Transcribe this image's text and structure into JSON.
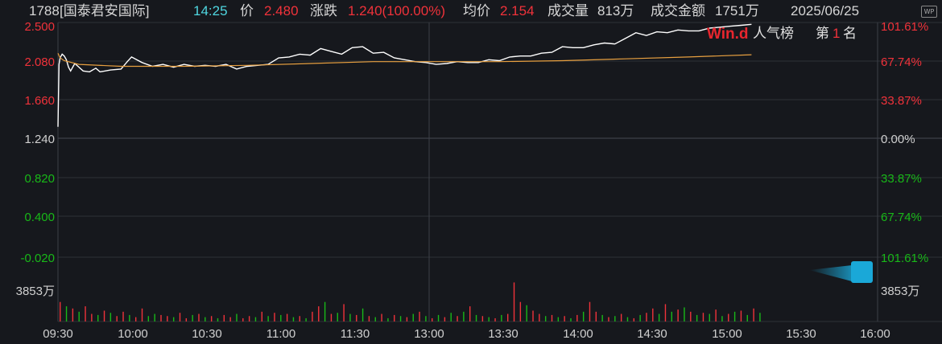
{
  "header": {
    "code": "1788",
    "name": "[国泰君安国际]",
    "time": "14:25",
    "price_label": "价",
    "price": "2.480",
    "change_label": "涨跌",
    "change": "1.240(100.00%)",
    "avg_label": "均价",
    "avg": "2.154",
    "volume_label": "成交量",
    "volume": "813万",
    "turnover_label": "成交金额",
    "turnover": "1751万",
    "date": "2025/06/25",
    "corner_badge": "WP"
  },
  "brand": {
    "logo_text": "Win.d",
    "popularity_label": "人气榜",
    "rank_prefix": "第",
    "rank": "1",
    "rank_suffix": "名"
  },
  "colors": {
    "up": "#f0323a",
    "down": "#18b818",
    "price_line": "#ffffff",
    "avg_line": "#e8a040",
    "grid": "#2f3238",
    "neutral_text": "#d0d0d0",
    "background": "#16181d"
  },
  "chart_data": {
    "type": "line",
    "title": "",
    "x_ticks": [
      "09:30",
      "10:00",
      "10:30",
      "11:00",
      "11:30",
      "13:00",
      "13:30",
      "14:00",
      "14:30",
      "15:00",
      "15:30",
      "16:00"
    ],
    "y_ticks_left": [
      "2.500",
      "2.080",
      "1.660",
      "1.240",
      "0.820",
      "0.400",
      "-0.020"
    ],
    "y_ticks_right": [
      "101.61%",
      "67.74%",
      "33.87%",
      "0.00%",
      "33.87%",
      "67.74%",
      "101.61%"
    ],
    "ylim": [
      -0.02,
      2.5
    ],
    "prev_close": 1.24,
    "volume_axis_label": "3853万",
    "volume_max_wan": 3853,
    "series": [
      {
        "key": "price",
        "x": [
          0,
          0.5,
          1,
          2,
          3,
          4,
          5,
          6,
          8,
          10,
          12,
          15,
          18,
          20,
          25,
          30,
          33,
          35,
          40,
          45,
          50,
          55,
          60,
          65,
          70,
          75,
          80,
          85,
          90,
          95,
          100,
          105,
          110,
          115,
          120,
          125,
          130,
          135,
          140,
          145,
          150,
          155,
          160,
          165,
          170,
          175,
          180,
          185,
          190,
          195,
          200,
          205,
          210,
          215,
          220,
          225,
          230,
          235,
          240,
          245,
          250,
          255,
          260,
          265,
          270,
          275,
          280,
          285,
          290,
          295,
          300,
          305,
          310,
          315,
          320,
          325,
          330
        ],
        "values": [
          1.38,
          2.05,
          2.12,
          2.16,
          2.14,
          2.1,
          2.02,
          1.98,
          2.06,
          2.02,
          1.98,
          1.97,
          2.01,
          1.97,
          1.99,
          2.0,
          2.08,
          2.13,
          2.07,
          2.03,
          2.05,
          2.02,
          2.05,
          2.03,
          2.04,
          2.03,
          2.05,
          2.0,
          2.03,
          2.04,
          2.05,
          2.12,
          2.13,
          2.16,
          2.15,
          2.22,
          2.19,
          2.16,
          2.23,
          2.24,
          2.17,
          2.18,
          2.12,
          2.1,
          2.08,
          2.07,
          2.05,
          2.06,
          2.08,
          2.07,
          2.07,
          2.1,
          2.09,
          2.13,
          2.14,
          2.14,
          2.17,
          2.18,
          2.24,
          2.23,
          2.23,
          2.26,
          2.28,
          2.27,
          2.33,
          2.39,
          2.36,
          2.4,
          2.39,
          2.42,
          2.41,
          2.41,
          2.44,
          2.45,
          2.46,
          2.47,
          2.48
        ]
      },
      {
        "key": "avg",
        "x": [
          0,
          1,
          3,
          10,
          30,
          60,
          90,
          120,
          150,
          180,
          210,
          240,
          270,
          300,
          330
        ],
        "values": [
          2.17,
          2.12,
          2.09,
          2.05,
          2.03,
          2.03,
          2.04,
          2.06,
          2.08,
          2.08,
          2.08,
          2.09,
          2.11,
          2.13,
          2.154
        ]
      }
    ],
    "volume": {
      "x_step": 3,
      "values_wan": [
        1800,
        -1400,
        1200,
        -900,
        1400,
        700,
        -600,
        1000,
        -800,
        500,
        900,
        -600,
        400,
        1200,
        -500,
        -700,
        600,
        500,
        -400,
        800,
        300,
        -600,
        700,
        -400,
        500,
        -300,
        600,
        400,
        -700,
        300,
        500,
        -400,
        900,
        -500,
        800,
        -600,
        700,
        -400,
        500,
        -300,
        900,
        1400,
        -1800,
        700,
        -800,
        1600,
        -700,
        600,
        -1200,
        500,
        -400,
        700,
        -300,
        600,
        -500,
        400,
        -700,
        900,
        -500,
        300,
        -600,
        400,
        -800,
        500,
        -900,
        1400,
        -600,
        500,
        -400,
        300,
        -600,
        700,
        3600,
        1800,
        -1500,
        1000,
        700,
        -500,
        600,
        -400,
        500,
        -300,
        600,
        -900,
        1800,
        900,
        -600,
        400,
        -500,
        700,
        -400,
        300,
        -600,
        800,
        1200,
        -700,
        1600,
        -900,
        1100,
        -1300,
        900,
        -600,
        800,
        -700,
        1100,
        -500,
        700,
        -900,
        1000,
        -600,
        1200,
        -800
      ]
    }
  }
}
